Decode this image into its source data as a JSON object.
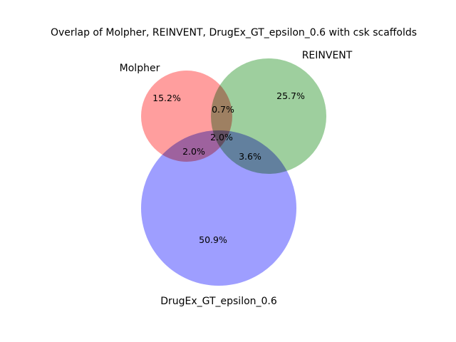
{
  "chart_data": {
    "type": "venn",
    "title": "Overlap of Molpher, REINVENT, DrugEx_GT_epsilon_0.6 with csk scaffolds",
    "sets": [
      {
        "name": "Molpher",
        "color": "#ff9999"
      },
      {
        "name": "REINVENT",
        "color": "#99cc99"
      },
      {
        "name": "DrugEx_GT_epsilon_0.6",
        "color": "#9999ff"
      }
    ],
    "regions": [
      {
        "sets": [
          "Molpher"
        ],
        "label": "15.2%",
        "value": 15.2
      },
      {
        "sets": [
          "REINVENT"
        ],
        "label": "25.7%",
        "value": 25.7
      },
      {
        "sets": [
          "DrugEx_GT_epsilon_0.6"
        ],
        "label": "50.9%",
        "value": 50.9
      },
      {
        "sets": [
          "Molpher",
          "REINVENT"
        ],
        "label": "0.7%",
        "value": 0.7
      },
      {
        "sets": [
          "Molpher",
          "DrugEx_GT_epsilon_0.6"
        ],
        "label": "2.0%",
        "value": 2.0
      },
      {
        "sets": [
          "REINVENT",
          "DrugEx_GT_epsilon_0.6"
        ],
        "label": "3.6%",
        "value": 3.6
      },
      {
        "sets": [
          "Molpher",
          "REINVENT",
          "DrugEx_GT_epsilon_0.6"
        ],
        "label": "2.0%",
        "value": 2.0
      }
    ]
  }
}
